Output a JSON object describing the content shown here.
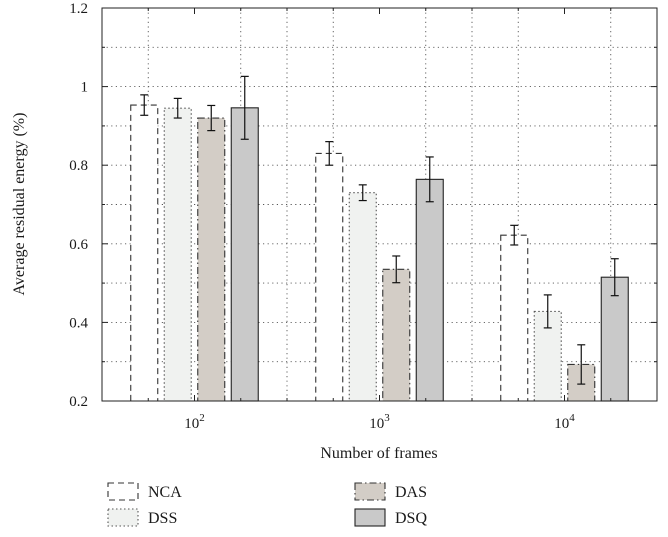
{
  "chart_data": {
    "type": "bar",
    "xlabel": "Number of frames",
    "ylabel": "Average residual energy (%)",
    "ylim": [
      0.2,
      1.2
    ],
    "yticks": [
      "0.2",
      "0.4",
      "0.6",
      "0.8",
      "1",
      "1.2"
    ],
    "categories": [
      {
        "base": "10",
        "exp": "2"
      },
      {
        "base": "10",
        "exp": "3"
      },
      {
        "base": "10",
        "exp": "4"
      }
    ],
    "grid": true,
    "legend_position": "bottom",
    "series": [
      {
        "name": "NCA",
        "values": [
          0.953,
          0.83,
          0.622
        ],
        "err": [
          0.026,
          0.03,
          0.025
        ],
        "fill": "#ffffff",
        "stroke": "#333333",
        "style": "dashed"
      },
      {
        "name": "DSS",
        "values": [
          0.945,
          0.73,
          0.428
        ],
        "err": [
          0.025,
          0.02,
          0.042
        ],
        "fill": "#f0f2f0",
        "stroke": "#555555",
        "style": "dotted"
      },
      {
        "name": "DAS",
        "values": [
          0.92,
          0.535,
          0.293
        ],
        "err": [
          0.032,
          0.034,
          0.05
        ],
        "fill": "#d3cdc6",
        "stroke": "#333333",
        "style": "dashdot"
      },
      {
        "name": "DSQ",
        "values": [
          0.946,
          0.764,
          0.515
        ],
        "err": [
          0.08,
          0.057,
          0.047
        ],
        "fill": "#c9c9c9",
        "stroke": "#222222",
        "style": "solid"
      }
    ]
  }
}
